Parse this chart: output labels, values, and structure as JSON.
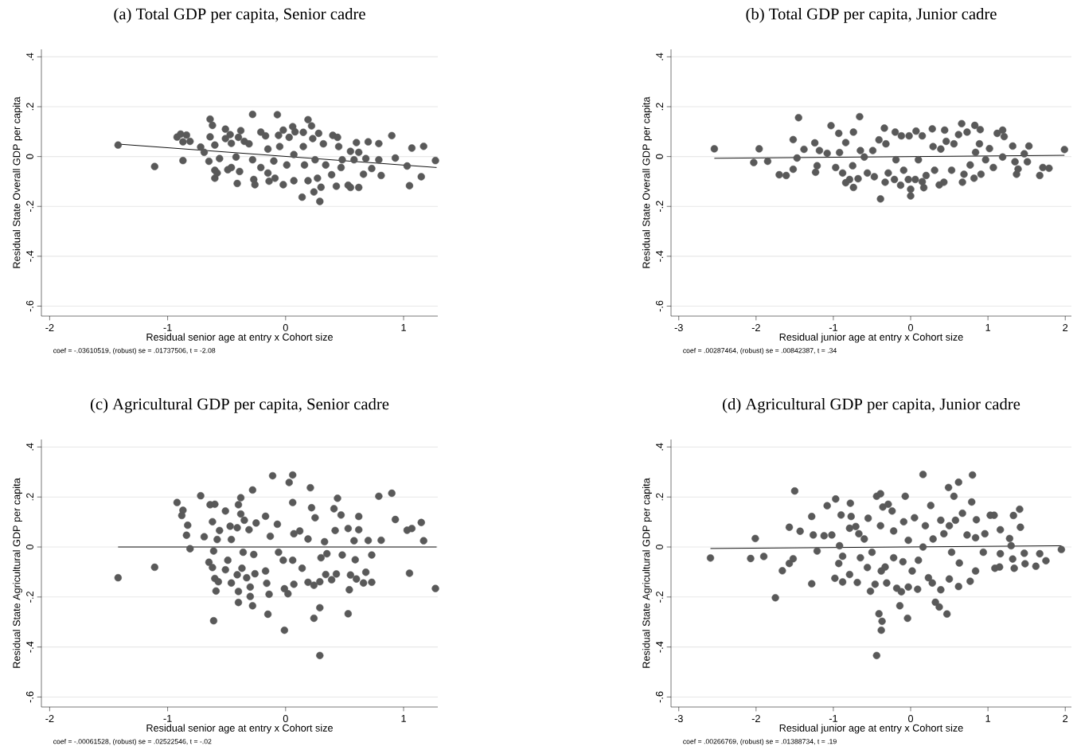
{
  "chart_data": [
    {
      "type": "scatter",
      "title": "(a) Total GDP per capita, Senior cadre",
      "xlabel": "Residual senior age at entry x Cohort size",
      "ylabel": "Residual State Overall GDP per capita",
      "annotations": [
        "coef = -.03610519, (robust) se = .01737506, t = -2.08"
      ],
      "xlim": [
        -2.07,
        1.29
      ],
      "ylim": [
        -0.64,
        0.43
      ],
      "xticks": [
        -2,
        -1,
        0,
        1
      ],
      "yticks": [
        {
          "value": -0.6,
          "label": "-.6"
        },
        {
          "value": -0.4,
          "label": "-.4"
        },
        {
          "value": -0.2,
          "label": "-.2"
        },
        0,
        {
          "value": 0.2,
          "label": ".2"
        },
        {
          "value": 0.4,
          "label": ".4"
        }
      ],
      "grid": "y",
      "series": [
        {
          "type": "scatter",
          "marker": "circle",
          "color": "#595959",
          "x": [
            -1.42,
            -1.11,
            -0.87,
            -0.92,
            -0.89,
            -0.84,
            -0.87,
            -0.81,
            -0.72,
            -0.69,
            -0.64,
            -0.62,
            -0.64,
            -0.65,
            -0.6,
            -0.6,
            -0.58,
            -0.56,
            -0.6,
            -0.51,
            -0.51,
            -0.47,
            -0.49,
            -0.46,
            -0.46,
            -0.41,
            -0.4,
            -0.38,
            -0.35,
            -0.39,
            -0.42,
            -0.31,
            -0.28,
            -0.27,
            -0.26,
            -0.28,
            -0.21,
            -0.21,
            -0.17,
            -0.15,
            -0.15,
            -0.14,
            -0.09,
            -0.07,
            -0.1,
            -0.06,
            -0.05,
            -0.02,
            -0.02,
            0.01,
            0.03,
            0.06,
            0.07,
            0.07,
            0.08,
            0.14,
            0.15,
            0.15,
            0.16,
            0.19,
            0.19,
            0.22,
            0.23,
            0.24,
            0.25,
            0.27,
            0.29,
            0.3,
            0.28,
            0.32,
            0.34,
            0.39,
            0.4,
            0.44,
            0.43,
            0.45,
            0.48,
            0.47,
            0.53,
            0.55,
            0.55,
            0.6,
            0.58,
            0.62,
            0.62,
            0.66,
            0.68,
            0.7,
            0.73,
            0.79,
            0.81,
            0.79,
            0.9,
            0.93,
            1.03,
            1.05,
            1.07,
            1.15,
            1.17,
            1.27
          ],
          "values": [
            0.046,
            -0.04,
            -0.016,
            0.078,
            0.09,
            0.086,
            0.059,
            0.061,
            0.038,
            0.017,
            0.15,
            0.125,
            0.079,
            -0.019,
            -0.055,
            -0.087,
            -0.066,
            -0.008,
            0.046,
            0.11,
            0.072,
            0.088,
            -0.053,
            0.053,
            -0.044,
            -0.108,
            0.077,
            0.104,
            0.061,
            -0.06,
            -0.002,
            0.051,
            0.169,
            -0.092,
            -0.113,
            -0.013,
            0.098,
            -0.044,
            0.083,
            0.03,
            -0.066,
            -0.099,
            -0.087,
            0.168,
            -0.018,
            0.085,
            0.04,
            0.106,
            -0.113,
            -0.034,
            0.077,
            0.12,
            0.008,
            -0.097,
            0.099,
            -0.163,
            0.097,
            0.04,
            -0.034,
            0.148,
            -0.097,
            0.123,
            0.072,
            -0.142,
            -0.013,
            -0.087,
            -0.18,
            -0.123,
            0.093,
            0.051,
            -0.034,
            -0.073,
            0.085,
            0.077,
            -0.119,
            0.04,
            -0.013,
            -0.044,
            -0.115,
            -0.124,
            0.021,
            0.056,
            -0.013,
            -0.124,
            0.017,
            -0.071,
            -0.008,
            0.059,
            -0.048,
            0.052,
            -0.076,
            -0.013,
            0.084,
            -0.006,
            -0.038,
            -0.117,
            0.034,
            -0.081,
            0.041,
            -0.016
          ]
        },
        {
          "type": "line",
          "color": "#000000",
          "x": [
            -1.42,
            1.28
          ],
          "values": [
            0.05,
            -0.044
          ]
        }
      ]
    },
    {
      "type": "scatter",
      "title": "(b) Total GDP per capita, Junior cadre",
      "xlabel": "Residual junior age at entry x Cohort size",
      "ylabel": "Residual State Overall GDP per capita",
      "annotations": [
        "coef = .00287464, (robust) se = .00842387, t = .34"
      ],
      "xlim": [
        -3.1,
        2.08
      ],
      "ylim": [
        -0.64,
        0.43
      ],
      "xticks": [
        -3,
        -2,
        -1,
        0,
        1,
        2
      ],
      "yticks": [
        {
          "value": -0.6,
          "label": "-.6"
        },
        {
          "value": -0.4,
          "label": "-.4"
        },
        {
          "value": -0.2,
          "label": "-.2"
        },
        0,
        {
          "value": 0.2,
          "label": ".2"
        },
        {
          "value": 0.4,
          "label": ".4"
        }
      ],
      "grid": "y",
      "series": [
        {
          "type": "scatter",
          "marker": "circle",
          "color": "#595959",
          "x": [
            -2.54,
            -1.96,
            -2.03,
            -1.85,
            -1.7,
            -1.61,
            -1.52,
            -1.45,
            -1.47,
            -1.52,
            -1.38,
            -1.24,
            -1.21,
            -1.23,
            -1.18,
            -1.08,
            -1.03,
            -0.97,
            -0.93,
            -0.92,
            -0.88,
            -0.84,
            -0.84,
            -0.79,
            -0.75,
            -0.74,
            -0.74,
            -0.66,
            -0.68,
            -0.65,
            -0.6,
            -0.56,
            -0.49,
            -0.47,
            -0.39,
            -0.41,
            -0.34,
            -0.33,
            -0.32,
            -0.29,
            -0.21,
            -0.2,
            -0.19,
            -0.13,
            -0.12,
            -0.09,
            -0.03,
            -0.02,
            0.0,
            0.0,
            0.06,
            0.07,
            0.1,
            0.15,
            0.15,
            0.17,
            0.2,
            0.28,
            0.29,
            0.31,
            0.37,
            0.39,
            0.43,
            0.44,
            0.46,
            0.53,
            0.56,
            0.62,
            0.66,
            0.67,
            0.69,
            0.73,
            0.77,
            0.82,
            0.83,
            0.84,
            0.89,
            0.9,
            0.91,
            0.97,
            1.02,
            1.07,
            1.12,
            1.19,
            1.21,
            1.19,
            1.32,
            1.35,
            1.37,
            1.39,
            1.47,
            1.51,
            1.53,
            1.67,
            1.71,
            1.79,
            1.99
          ],
          "values": [
            0.031,
            0.031,
            -0.024,
            -0.019,
            -0.073,
            -0.076,
            0.068,
            0.156,
            -0.006,
            -0.051,
            0.029,
            0.055,
            -0.037,
            -0.063,
            0.024,
            0.013,
            0.124,
            -0.044,
            0.093,
            0.016,
            -0.066,
            0.056,
            -0.105,
            -0.092,
            -0.037,
            -0.124,
            0.098,
            0.16,
            -0.089,
            0.024,
            -0.002,
            -0.066,
            0.024,
            -0.081,
            -0.17,
            0.067,
            0.114,
            -0.103,
            0.051,
            -0.066,
            -0.092,
            0.098,
            -0.013,
            -0.115,
            0.083,
            -0.055,
            -0.092,
            0.083,
            -0.158,
            -0.131,
            -0.092,
            0.102,
            -0.013,
            -0.101,
            0.083,
            -0.125,
            -0.076,
            0.111,
            0.04,
            -0.055,
            -0.114,
            0.03,
            -0.103,
            0.106,
            0.061,
            -0.055,
            0.051,
            0.088,
            0.132,
            -0.103,
            -0.071,
            0.098,
            -0.034,
            -0.087,
            0.125,
            0.017,
            0.051,
            0.108,
            -0.071,
            -0.013,
            0.032,
            -0.044,
            0.093,
            0.106,
            0.08,
            -0.002,
            0.042,
            -0.021,
            -0.071,
            -0.05,
            0.011,
            -0.021,
            0.042,
            -0.076,
            -0.044,
            -0.047,
            0.028
          ]
        },
        {
          "type": "line",
          "color": "#000000",
          "x": [
            -2.54,
            1.99
          ],
          "values": [
            -0.007,
            0.005
          ]
        }
      ]
    },
    {
      "type": "scatter",
      "title": "(c) Agricultural GDP per capita, Senior cadre",
      "xlabel": "Residual senior age at entry x Cohort size",
      "ylabel": "Residual State Agricultural GDP per capita",
      "annotations": [
        "coef = -.00061528, (robust) se = .02522546, t = -.02"
      ],
      "xlim": [
        -2.07,
        1.29
      ],
      "ylim": [
        -0.64,
        0.43
      ],
      "xticks": [
        -2,
        -1,
        0,
        1
      ],
      "yticks": [
        {
          "value": -0.6,
          "label": "-.6"
        },
        {
          "value": -0.4,
          "label": "-.4"
        },
        {
          "value": -0.2,
          "label": "-.2"
        },
        0,
        {
          "value": 0.2,
          "label": ".2"
        },
        {
          "value": 0.4,
          "label": ".4"
        }
      ],
      "grid": "y",
      "series": [
        {
          "type": "scatter",
          "marker": "circle",
          "color": "#595959",
          "x": [
            -1.42,
            -1.11,
            -0.92,
            -0.87,
            -0.88,
            -0.83,
            -0.84,
            -0.81,
            -0.72,
            -0.69,
            -0.64,
            -0.6,
            -0.62,
            -0.61,
            -0.65,
            -0.62,
            -0.6,
            -0.57,
            -0.59,
            -0.61,
            -0.56,
            -0.58,
            -0.51,
            -0.51,
            -0.47,
            -0.46,
            -0.49,
            -0.46,
            -0.41,
            -0.4,
            -0.4,
            -0.38,
            -0.4,
            -0.38,
            -0.41,
            -0.36,
            -0.37,
            -0.35,
            -0.33,
            -0.3,
            -0.3,
            -0.28,
            -0.28,
            -0.31,
            -0.27,
            -0.26,
            -0.25,
            -0.17,
            -0.17,
            -0.16,
            -0.14,
            -0.15,
            -0.11,
            -0.13,
            -0.07,
            -0.06,
            -0.02,
            -0.01,
            0.02,
            -0.01,
            0.03,
            0.06,
            0.06,
            0.07,
            0.06,
            0.07,
            0.12,
            0.14,
            0.19,
            0.19,
            0.21,
            0.22,
            0.24,
            0.24,
            0.25,
            0.29,
            0.29,
            0.29,
            0.3,
            0.33,
            0.34,
            0.35,
            0.39,
            0.41,
            0.42,
            0.44,
            0.43,
            0.47,
            0.48,
            0.53,
            0.53,
            0.54,
            0.55,
            0.58,
            0.59,
            0.6,
            0.62,
            0.62,
            0.66,
            0.68,
            0.7,
            0.73,
            0.73,
            0.79,
            0.81,
            0.9,
            0.93,
            1.03,
            1.05,
            1.07,
            1.15,
            1.17,
            1.27
          ],
          "values": [
            -0.123,
            -0.081,
            0.178,
            0.147,
            0.126,
            0.087,
            0.047,
            -0.007,
            0.205,
            0.041,
            0.169,
            0.171,
            0.101,
            -0.016,
            -0.061,
            -0.082,
            -0.126,
            -0.139,
            -0.176,
            -0.295,
            0.066,
            0.03,
            0.144,
            -0.091,
            0.083,
            0.03,
            -0.053,
            -0.144,
            -0.111,
            -0.178,
            -0.222,
            0.197,
            0.169,
            0.132,
            0.077,
            -0.021,
            -0.085,
            0.107,
            -0.123,
            -0.16,
            -0.198,
            -0.235,
            0.228,
            0.069,
            -0.03,
            -0.107,
            0.096,
            0.123,
            -0.096,
            -0.145,
            -0.189,
            -0.269,
            0.285,
            0.043,
            0.091,
            -0.021,
            -0.053,
            -0.167,
            -0.187,
            -0.333,
            0.258,
            0.288,
            0.178,
            0.053,
            -0.053,
            -0.149,
            0.064,
            -0.085,
            0.032,
            -0.141,
            0.237,
            0.157,
            -0.285,
            -0.153,
            0.117,
            -0.243,
            -0.434,
            -0.139,
            -0.043,
            0.021,
            -0.11,
            -0.027,
            -0.131,
            0.153,
            0.066,
            0.195,
            -0.108,
            0.128,
            -0.032,
            0.074,
            -0.267,
            -0.171,
            -0.112,
            0.025,
            -0.051,
            -0.128,
            0.122,
            0.069,
            -0.144,
            -0.101,
            0.026,
            -0.032,
            -0.141,
            0.203,
            0.027,
            0.215,
            0.11,
            0.067,
            -0.105,
            0.074,
            0.098,
            0.025,
            -0.166
          ]
        },
        {
          "type": "line",
          "color": "#000000",
          "x": [
            -1.42,
            1.28
          ],
          "values": [
            0.0,
            0.0
          ]
        }
      ]
    },
    {
      "type": "scatter",
      "title": "(d) Agricultural GDP per capita, Junior cadre",
      "xlabel": "Residual junior age at entry x Cohort size",
      "ylabel": "Residual State Agricultural GDP per capita",
      "annotations": [
        "coef = .00266769, (robust) se = .01388734, t = .19"
      ],
      "xlim": [
        -3.1,
        2.08
      ],
      "ylim": [
        -0.64,
        0.43
      ],
      "xticks": [
        -3,
        -2,
        -1,
        0,
        1,
        2
      ],
      "yticks": [
        {
          "value": -0.6,
          "label": "-.6"
        },
        {
          "value": -0.4,
          "label": "-.4"
        },
        {
          "value": -0.2,
          "label": "-.2"
        },
        0,
        {
          "value": 0.2,
          "label": ".2"
        },
        {
          "value": 0.4,
          "label": ".4"
        }
      ],
      "grid": "y",
      "series": [
        {
          "type": "scatter",
          "marker": "circle",
          "color": "#595959",
          "x": [
            -2.59,
            -2.07,
            -2.01,
            -1.9,
            -1.75,
            -1.66,
            -1.57,
            -1.52,
            -1.57,
            -1.5,
            -1.43,
            -1.28,
            -1.26,
            -1.28,
            -1.21,
            -1.12,
            -1.08,
            -1.02,
            -0.98,
            -0.97,
            -0.92,
            -0.93,
            -0.9,
            -0.88,
            -0.88,
            -0.79,
            -0.78,
            -0.79,
            -0.77,
            -0.71,
            -0.69,
            -0.67,
            -0.65,
            -0.6,
            -0.56,
            -0.55,
            -0.52,
            -0.5,
            -0.46,
            -0.44,
            -0.44,
            -0.41,
            -0.38,
            -0.37,
            -0.39,
            -0.36,
            -0.39,
            -0.38,
            -0.33,
            -0.31,
            -0.29,
            -0.24,
            -0.22,
            -0.22,
            -0.18,
            -0.14,
            -0.12,
            -0.1,
            -0.09,
            -0.07,
            -0.04,
            -0.03,
            -0.03,
            0.02,
            0.05,
            0.09,
            0.1,
            0.16,
            0.16,
            0.19,
            0.23,
            0.26,
            0.28,
            0.29,
            0.32,
            0.37,
            0.39,
            0.39,
            0.43,
            0.47,
            0.49,
            0.5,
            0.5,
            0.53,
            0.56,
            0.58,
            0.62,
            0.62,
            0.63,
            0.67,
            0.73,
            0.77,
            0.8,
            0.79,
            0.84,
            0.85,
            0.84,
            0.96,
            0.94,
            1.03,
            1.08,
            1.09,
            1.15,
            1.16,
            1.16,
            1.28,
            1.3,
            1.32,
            1.34,
            1.33,
            1.42,
            1.41,
            1.47,
            1.48,
            1.62,
            1.67,
            1.75,
            1.95
          ],
          "values": [
            -0.044,
            -0.046,
            0.034,
            -0.038,
            -0.203,
            -0.095,
            -0.066,
            -0.047,
            0.079,
            0.224,
            0.063,
            0.122,
            0.048,
            -0.147,
            -0.016,
            0.045,
            0.165,
            0.048,
            -0.125,
            0.192,
            0.005,
            -0.066,
            0.128,
            -0.14,
            -0.037,
            -0.11,
            0.175,
            0.075,
            0.122,
            0.082,
            -0.142,
            0.053,
            -0.043,
            0.032,
            -0.082,
            0.115,
            -0.177,
            -0.021,
            -0.149,
            0.203,
            -0.434,
            -0.267,
            -0.333,
            -0.297,
            0.213,
            0.16,
            0.085,
            -0.096,
            -0.08,
            -0.144,
            0.171,
            0.144,
            0.064,
            -0.043,
            -0.165,
            -0.235,
            -0.179,
            -0.059,
            0.101,
            0.203,
            -0.285,
            -0.16,
            0.027,
            -0.096,
            0.117,
            -0.169,
            -0.053,
            0.29,
            0.0,
            0.085,
            -0.123,
            0.166,
            -0.144,
            0.032,
            -0.221,
            -0.24,
            0.107,
            -0.171,
            0.053,
            -0.268,
            0.238,
            -0.128,
            0.085,
            -0.021,
            0.203,
            0.107,
            0.259,
            -0.158,
            -0.064,
            0.135,
            0.048,
            -0.137,
            0.288,
            0.18,
            -0.096,
            0.109,
            0.037,
            0.053,
            -0.021,
            0.127,
            0.127,
            -0.085,
            -0.08,
            0.069,
            -0.027,
            0.034,
            0.005,
            -0.048,
            -0.085,
            0.126,
            0.079,
            0.151,
            -0.025,
            -0.067,
            -0.077,
            -0.027,
            -0.055,
            -0.01
          ]
        },
        {
          "type": "line",
          "color": "#000000",
          "x": [
            -2.59,
            1.95
          ],
          "values": [
            -0.006,
            0.005
          ]
        }
      ]
    }
  ]
}
